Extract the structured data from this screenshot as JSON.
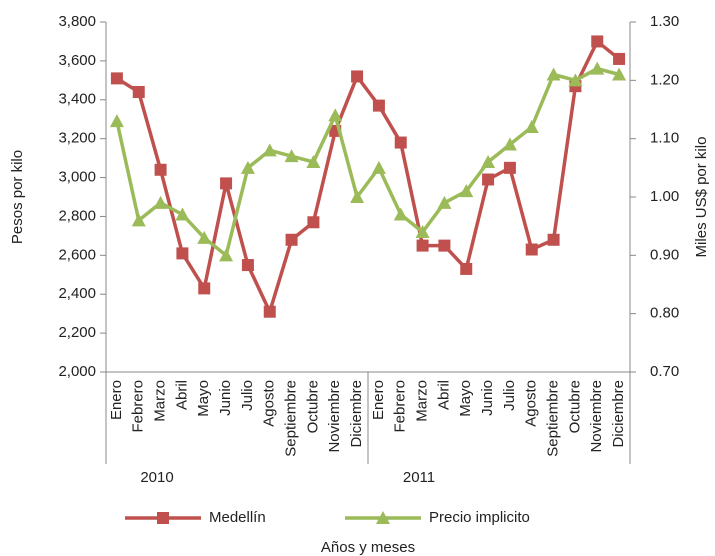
{
  "chart_data": {
    "type": "line",
    "categories": [
      "Enero",
      "Febrero",
      "Marzo",
      "Abril",
      "Mayo",
      "Junio",
      "Julio",
      "Agosto",
      "Septiembre",
      "Octubre",
      "Noviembre",
      "Diciembre",
      "Enero",
      "Febrero",
      "Marzo",
      "Abril",
      "Mayo",
      "Junio",
      "Julio",
      "Agosto",
      "Septiembre",
      "Octubre",
      "Noviembre",
      "Diciembre"
    ],
    "category_groups": [
      "2010",
      "2011"
    ],
    "x_label": "Años y meses",
    "y_label": "Pesos por kilo",
    "y2_label": "Miles US$ por kilo",
    "ylim": [
      2000,
      3800
    ],
    "yticks": [
      {
        "value": 2000,
        "label": "2,000"
      },
      {
        "value": 2200,
        "label": "2,200"
      },
      {
        "value": 2400,
        "label": "2,400"
      },
      {
        "value": 2600,
        "label": "2,600"
      },
      {
        "value": 2800,
        "label": "2,800"
      },
      {
        "value": 3000,
        "label": "3,000"
      },
      {
        "value": 3200,
        "label": "3,200"
      },
      {
        "value": 3400,
        "label": "3,400"
      },
      {
        "value": 3600,
        "label": "3,600"
      },
      {
        "value": 3800,
        "label": "3,800"
      }
    ],
    "y2lim": [
      0.7,
      1.3
    ],
    "y2ticks": [
      {
        "value": 0.7,
        "label": "0.70"
      },
      {
        "value": 0.8,
        "label": "0.80"
      },
      {
        "value": 0.9,
        "label": "0.90"
      },
      {
        "value": 1.0,
        "label": "1.00"
      },
      {
        "value": 1.1,
        "label": "1.10"
      },
      {
        "value": 1.2,
        "label": "1.20"
      },
      {
        "value": 1.3,
        "label": "1.30"
      }
    ],
    "grid": false,
    "legend": "bottom",
    "series": [
      {
        "name": "Medellín",
        "color": "#c0504d",
        "marker": "square",
        "values": [
          3510,
          3440,
          3040,
          2610,
          2430,
          2970,
          2550,
          2310,
          2680,
          2770,
          3240,
          3520,
          3370,
          3180,
          2650,
          2650,
          2530,
          2990,
          3050,
          2630,
          2680,
          3470,
          3700,
          3610
        ]
      },
      {
        "name": "Precio implicito",
        "color": "#9bbb59",
        "marker": "triangle",
        "axis": "y2",
        "values": [
          1.13,
          0.96,
          0.99,
          0.97,
          0.93,
          0.9,
          1.05,
          1.08,
          1.07,
          1.06,
          1.14,
          1.0,
          1.05,
          0.97,
          0.94,
          0.99,
          1.01,
          1.06,
          1.09,
          1.12,
          1.21,
          1.2,
          1.22,
          1.21
        ]
      }
    ]
  }
}
